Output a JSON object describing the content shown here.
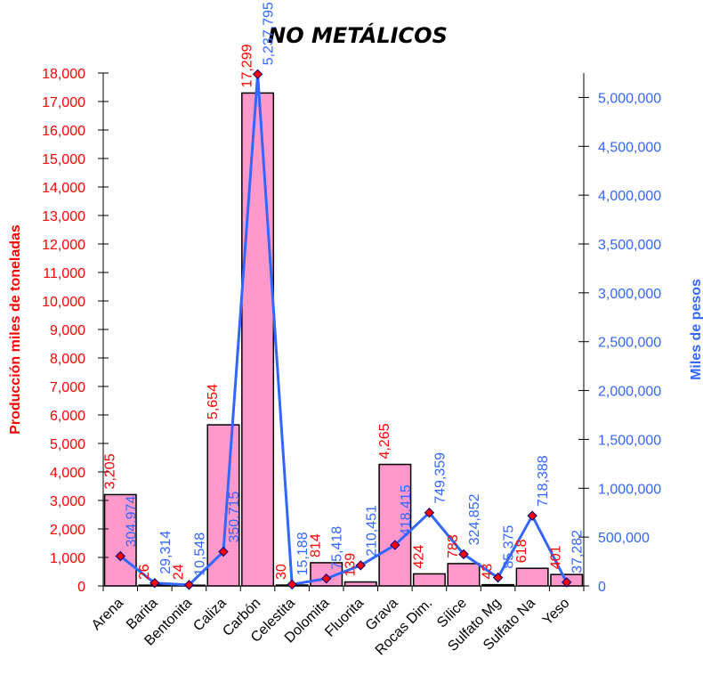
{
  "chart_data": {
    "type": "bar",
    "title": "NO METÁLICOS",
    "categories": [
      "Arena",
      "Barita",
      "Bentonita",
      "Caliza",
      "Carbón",
      "Celestita",
      "Dolomita",
      "Fluorita",
      "Grava",
      "Rocas Dim.",
      "Sílice",
      "Sulfato Mg",
      "Sulfato Na",
      "Yeso"
    ],
    "y_left": {
      "label": "Producción miles de toneladas",
      "ylim": [
        0,
        18000
      ],
      "ticks": [
        0,
        1000,
        2000,
        3000,
        4000,
        5000,
        6000,
        7000,
        8000,
        9000,
        10000,
        11000,
        12000,
        13000,
        14000,
        15000,
        16000,
        17000,
        18000
      ],
      "tick_labels": [
        "0",
        "1,000",
        "2,000",
        "3,000",
        "4,000",
        "5,000",
        "6,000",
        "7,000",
        "8,000",
        "9,000",
        "10,000",
        "11,000",
        "12,000",
        "13,000",
        "14,000",
        "15,000",
        "16,000",
        "17,000",
        "18,000"
      ]
    },
    "y_right": {
      "label": "Miles de pesos",
      "ylim": [
        0,
        5250000
      ],
      "ticks": [
        0,
        500000,
        1000000,
        1500000,
        2000000,
        2500000,
        3000000,
        3500000,
        4000000,
        4500000,
        5000000
      ],
      "tick_labels": [
        "0",
        "500,000",
        "1,000,000",
        "1,500,000",
        "2,000,000",
        "2,500,000",
        "3,000,000",
        "3,500,000",
        "4,000,000",
        "4,500,000",
        "5,000,000"
      ]
    },
    "series": [
      {
        "type": "bar",
        "axis": "left",
        "color": "#ff99cc",
        "values": [
          3205,
          26,
          24,
          5654,
          17299,
          30,
          814,
          139,
          4265,
          424,
          783,
          43,
          618,
          401
        ],
        "labels": [
          "3,205",
          "26",
          "24",
          "5,654",
          "17,299",
          "30",
          "814",
          "139",
          "4,265",
          "424",
          "783",
          "43",
          "618",
          "401"
        ]
      },
      {
        "type": "line",
        "axis": "right",
        "color": "#3366ff",
        "marker_color": "#ff0000",
        "values": [
          304974,
          29314,
          10548,
          350715,
          5237795,
          15188,
          75418,
          210451,
          418415,
          749359,
          324852,
          85375,
          718388,
          37282
        ],
        "labels": [
          "304,974",
          "29,314",
          "10,548",
          "350,715",
          "5,237,795",
          "15,188",
          "75,418",
          "210,451",
          "418,415",
          "749,359",
          "324,852",
          "85,375",
          "718,388",
          "37,282"
        ]
      }
    ],
    "grid": false,
    "legend": "none"
  }
}
